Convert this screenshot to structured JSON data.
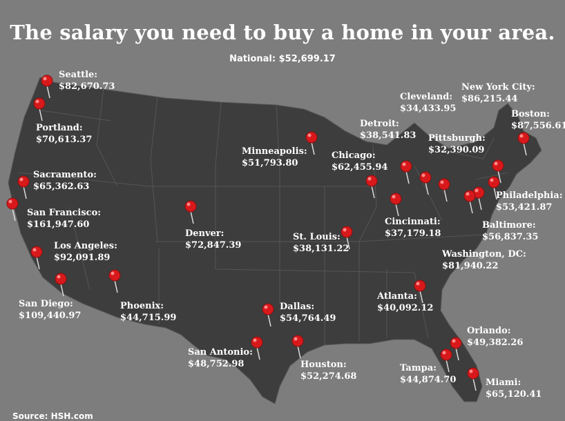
{
  "header": {
    "title": "The salary you need to buy a home in your area.",
    "national": "National: $52,699.17"
  },
  "source": "Source: HSH.com",
  "colors": {
    "background": "#7d7d7d",
    "land": "#3d3d3d",
    "pin": "#d8191b"
  },
  "cities": [
    {
      "id": "seattle",
      "name": "Seattle:",
      "salary": "$82,670.73"
    },
    {
      "id": "portland",
      "name": "Portland:",
      "salary": "$70,613.37"
    },
    {
      "id": "sacramento",
      "name": "Sacramento:",
      "salary": "$65,362.63"
    },
    {
      "id": "san-francisco",
      "name": "San Francisco:",
      "salary": "$161,947.60"
    },
    {
      "id": "los-angeles",
      "name": "Los Angeles:",
      "salary": "$92,091.89"
    },
    {
      "id": "san-diego",
      "name": "San Diego:",
      "salary": "$109,440.97"
    },
    {
      "id": "phoenix",
      "name": "Phoenix:",
      "salary": "$44,715.99"
    },
    {
      "id": "denver",
      "name": "Denver:",
      "salary": "$72,847.39"
    },
    {
      "id": "minneapolis",
      "name": "Minneapolis:",
      "salary": "$51,793.80"
    },
    {
      "id": "chicago",
      "name": "Chicago:",
      "salary": "$62,455.94"
    },
    {
      "id": "detroit",
      "name": "Detroit:",
      "salary": "$38,541.83"
    },
    {
      "id": "cleveland",
      "name": "Cleveland:",
      "salary": "$34,433.95"
    },
    {
      "id": "new-york-city",
      "name": "New York City:",
      "salary": "$86,215.44"
    },
    {
      "id": "boston",
      "name": "Boston:",
      "salary": "$87,556.61"
    },
    {
      "id": "pittsburgh",
      "name": "Pittsburgh:",
      "salary": "$32,390.09"
    },
    {
      "id": "philadelphia",
      "name": "Philadelphia:",
      "salary": "$53,421.87"
    },
    {
      "id": "baltimore",
      "name": "Baltimore:",
      "salary": "$56,837.35"
    },
    {
      "id": "washington-dc",
      "name": "Washington, DC:",
      "salary": "$81,940.22"
    },
    {
      "id": "cincinnati",
      "name": "Cincinnati:",
      "salary": "$37,179.18"
    },
    {
      "id": "st-louis",
      "name": "St. Louis:",
      "salary": "$38,131.22"
    },
    {
      "id": "dallas",
      "name": "Dallas:",
      "salary": "$54,764.49"
    },
    {
      "id": "atlanta",
      "name": "Atlanta:",
      "salary": "$40,092.12"
    },
    {
      "id": "san-antonio",
      "name": "San Antonio:",
      "salary": "$48,752.98"
    },
    {
      "id": "houston",
      "name": "Houston:",
      "salary": "$52,274.68"
    },
    {
      "id": "orlando",
      "name": "Orlando:",
      "salary": "$49,382.26"
    },
    {
      "id": "tampa",
      "name": "Tampa:",
      "salary": "$44,874.70"
    },
    {
      "id": "miami",
      "name": "Miami:",
      "salary": "$65,120.41"
    }
  ]
}
